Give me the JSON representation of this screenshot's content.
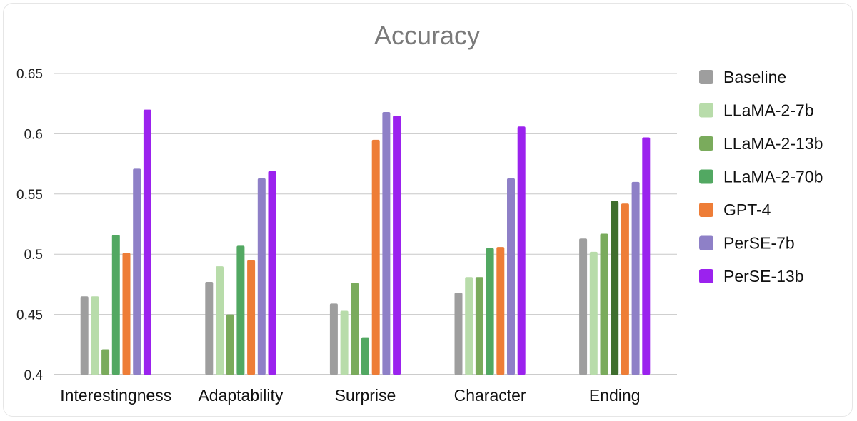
{
  "chart_data": {
    "type": "bar",
    "title": "Accuracy",
    "xlabel": "",
    "ylabel": "",
    "ylim": [
      0.4,
      0.65
    ],
    "yticks": [
      "0.4",
      "0.45",
      "0.5",
      "0.55",
      "0.6",
      "0.65"
    ],
    "grid": true,
    "legend_position": "right",
    "categories": [
      "Interestingness",
      "Adaptability",
      "Surprise",
      "Character",
      "Ending"
    ],
    "series": [
      {
        "name": "Baseline",
        "color": "#9e9e9e",
        "values": [
          0.465,
          0.477,
          0.459,
          0.468,
          0.513
        ]
      },
      {
        "name": "LLaMA-2-7b",
        "color": "#b8dcaa",
        "values": [
          0.465,
          0.49,
          0.453,
          0.481,
          0.502
        ]
      },
      {
        "name": "LLaMA-2-13b",
        "color": "#7aab5c",
        "values": [
          0.421,
          0.45,
          0.476,
          0.481,
          0.517
        ]
      },
      {
        "name": "LLaMA-2-70b",
        "color": "#52a862",
        "values": [
          0.516,
          0.507,
          0.431,
          0.505,
          0.544
        ]
      },
      {
        "name": "GPT-4",
        "color": "#ee7d37",
        "values": [
          0.501,
          0.495,
          0.595,
          0.506,
          0.542
        ]
      },
      {
        "name": "PerSE-7b",
        "color": "#8e80c7",
        "values": [
          0.571,
          0.563,
          0.618,
          0.563,
          0.56
        ]
      },
      {
        "name": "PerSE-13b",
        "color": "#9b22ee",
        "values": [
          0.62,
          0.569,
          0.615,
          0.606,
          0.597
        ]
      }
    ],
    "bar_color_overrides": [
      {
        "series": "LLaMA-2-70b",
        "category": "Ending",
        "color": "#3f6e2e"
      }
    ]
  }
}
